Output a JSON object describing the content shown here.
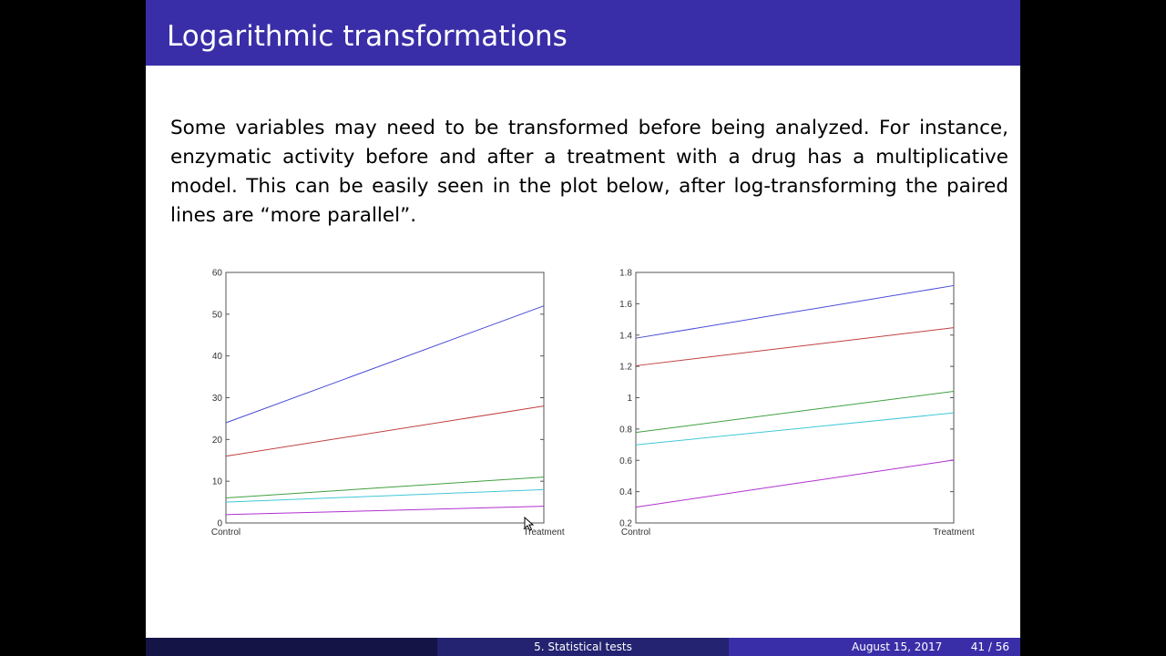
{
  "slide": {
    "title": "Logarithmic transformations",
    "body": "Some variables may need to be transformed before being analyzed. For instance, enzymatic activity before and after a treatment with a drug has a multiplicative model. This can be easily seen in the plot below, after log-transforming the paired lines are “more parallel”."
  },
  "footer": {
    "section": "5. Statistical tests",
    "date": "August 15, 2017",
    "page": "41 / 56"
  },
  "colors": {
    "title_bar": "#3a2ea8",
    "footer_dark": "#141446",
    "footer_mid": "#232371",
    "footer_light": "#3a2ea8"
  },
  "chart_data": [
    {
      "type": "line",
      "title": "",
      "xlabel": "",
      "ylabel": "",
      "categories": [
        "Control",
        "Treatment"
      ],
      "ylim": [
        0,
        60
      ],
      "yticks": [
        "0",
        "10",
        "20",
        "30",
        "40",
        "50",
        "60"
      ],
      "grid": false,
      "series": [
        {
          "color": "#4a4ad8",
          "values": [
            24,
            52
          ]
        },
        {
          "color": "#c04040",
          "values": [
            16,
            28
          ]
        },
        {
          "color": "#40a040",
          "values": [
            6,
            11
          ]
        },
        {
          "color": "#40c8d8",
          "values": [
            5,
            8
          ]
        },
        {
          "color": "#b030d0",
          "values": [
            2,
            4
          ]
        }
      ]
    },
    {
      "type": "line",
      "title": "",
      "xlabel": "",
      "ylabel": "",
      "categories": [
        "Control",
        "Treatment"
      ],
      "ylim": [
        0.2,
        1.8
      ],
      "yticks": [
        "0.2",
        "0.4",
        "0.6",
        "0.8",
        "1",
        "1.2",
        "1.4",
        "1.6",
        "1.8"
      ],
      "grid": false,
      "series": [
        {
          "color": "#4a4ad8",
          "values": [
            1.38,
            1.716
          ]
        },
        {
          "color": "#c04040",
          "values": [
            1.204,
            1.447
          ]
        },
        {
          "color": "#40a040",
          "values": [
            0.778,
            1.041
          ]
        },
        {
          "color": "#40c8d8",
          "values": [
            0.699,
            0.903
          ]
        },
        {
          "color": "#b030d0",
          "values": [
            0.301,
            0.602
          ]
        }
      ]
    }
  ]
}
